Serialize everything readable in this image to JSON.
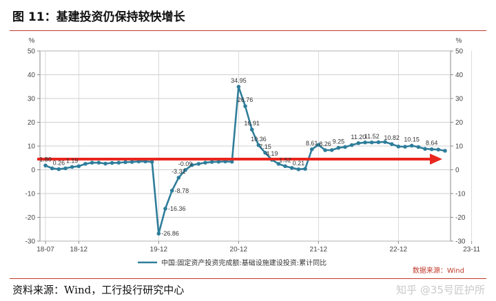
{
  "figure": {
    "title": "图 11：基建投资仍保持较快增长",
    "source": "资料来源：Wind，工行投行研究中心",
    "watermark": "知乎 @35号匠护所"
  },
  "chart_data": {
    "type": "line",
    "ylabel_left": "%",
    "ylabel_right": "%",
    "ylim": [
      -30,
      50
    ],
    "yticks": [
      -30,
      -20,
      -10,
      0,
      10,
      20,
      30,
      40,
      50
    ],
    "x_tick_labels": [
      "18-07",
      "18-12",
      "19-12",
      "20-12",
      "21-12",
      "22-12",
      "23-11"
    ],
    "x_tick_index": [
      0,
      5,
      17,
      29,
      41,
      53,
      64
    ],
    "grid": true,
    "legend_position": "bottom",
    "chart_source_note": "数据来源：Wind",
    "annotation_arrow": {
      "y": 4.5,
      "color": "#e8261e"
    },
    "series": [
      {
        "name": "中国:固定资产投资完成额:基础设施建设投资:累计同比",
        "color": "#2e7d9a",
        "values": [
          1.8,
          0.6,
          0.26,
          0.6,
          1.19,
          1.5,
          2.5,
          3.0,
          3.0,
          2.6,
          2.9,
          3.0,
          3.2,
          3.3,
          3.5,
          3.52,
          3.33,
          -26.86,
          -16.36,
          -8.78,
          -3.31,
          -0.09,
          2.0,
          2.5,
          3.0,
          3.3,
          3.4,
          3.5,
          3.4,
          34.95,
          26.76,
          16.91,
          10.36,
          7.15,
          4.19,
          2.5,
          1.52,
          0.8,
          0.21,
          0.4,
          8.61,
          10.5,
          8.26,
          8.3,
          9.25,
          9.6,
          10.4,
          11.2,
          11.5,
          11.52,
          11.6,
          11.7,
          10.82,
          9.8,
          9.7,
          10.15,
          9.6,
          8.8,
          8.64,
          8.5,
          8.0
        ]
      }
    ],
    "data_labels": [
      {
        "i": 0,
        "text": "1.80"
      },
      {
        "i": 2,
        "text": "0.26"
      },
      {
        "i": 4,
        "text": "1.19"
      },
      {
        "i": 17,
        "text": "-26.86"
      },
      {
        "i": 18,
        "text": "-16.36"
      },
      {
        "i": 19,
        "text": "-8.78"
      },
      {
        "i": 20,
        "text": "-3.31"
      },
      {
        "i": 21,
        "text": "-0.09"
      },
      {
        "i": 29,
        "text": "34.95"
      },
      {
        "i": 30,
        "text": "26.76"
      },
      {
        "i": 31,
        "text": "16.91"
      },
      {
        "i": 32,
        "text": "10.36"
      },
      {
        "i": 33,
        "text": "7.15"
      },
      {
        "i": 34,
        "text": "4.19"
      },
      {
        "i": 36,
        "text": "1.52"
      },
      {
        "i": 38,
        "text": "0.21"
      },
      {
        "i": 40,
        "text": "8.61"
      },
      {
        "i": 42,
        "text": "8.26"
      },
      {
        "i": 44,
        "text": "9.25"
      },
      {
        "i": 47,
        "text": "11.20"
      },
      {
        "i": 49,
        "text": "11.52"
      },
      {
        "i": 52,
        "text": "10.82"
      },
      {
        "i": 55,
        "text": "10.15"
      },
      {
        "i": 58,
        "text": "8.64"
      }
    ]
  }
}
